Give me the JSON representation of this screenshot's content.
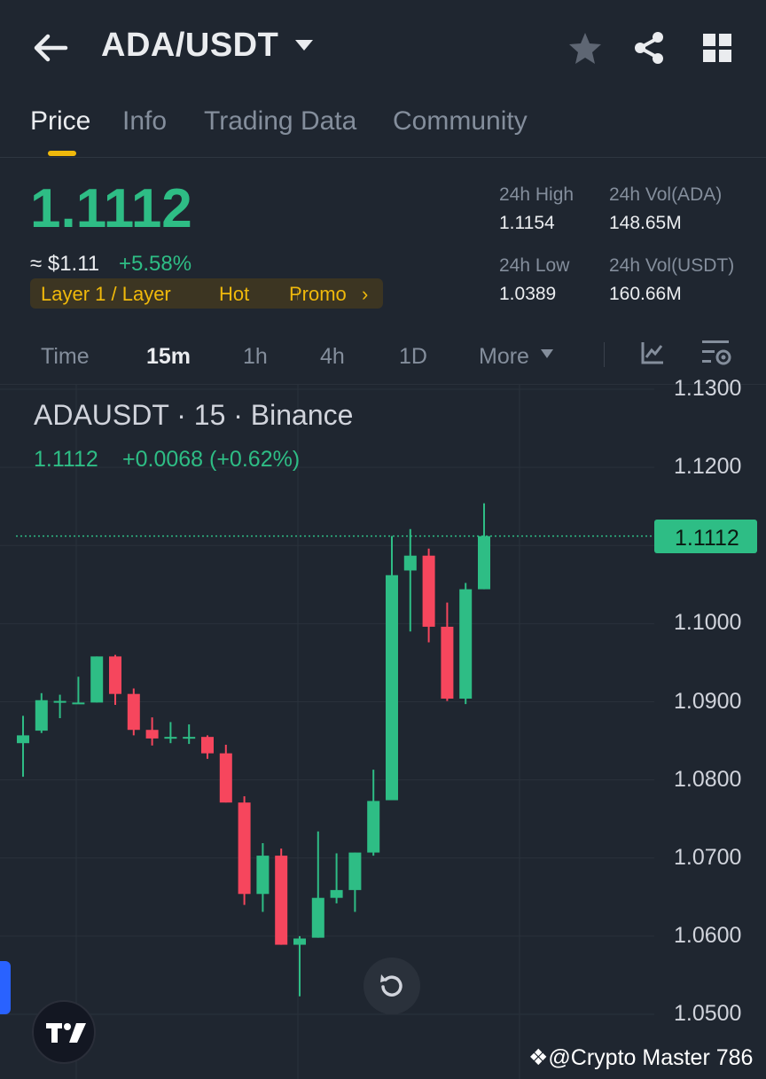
{
  "header": {
    "pair": "ADA/USDT",
    "icons": [
      "back-arrow-icon",
      "chevron-down-icon",
      "star-icon",
      "share-icon",
      "grid-icon"
    ]
  },
  "tabs": [
    {
      "label": "Price",
      "active": true
    },
    {
      "label": "Info",
      "active": false
    },
    {
      "label": "Trading Data",
      "active": false
    },
    {
      "label": "Community",
      "active": false
    }
  ],
  "summary": {
    "last_price": "1.1112",
    "usd_price": "≈ $1.11",
    "change_pct": "+5.58%",
    "tags": [
      "Layer 1 / Layer",
      "Hot",
      "Promo"
    ],
    "high_label": "24h High",
    "high_value": "1.1154",
    "low_label": "24h Low",
    "low_value": "1.0389",
    "vol_base_label": "24h Vol(ADA)",
    "vol_base_value": "148.65M",
    "vol_quote_label": "24h Vol(USDT)",
    "vol_quote_value": "160.66M"
  },
  "intervals": [
    {
      "label": "Time",
      "active": false
    },
    {
      "label": "15m",
      "active": true
    },
    {
      "label": "1h",
      "active": false
    },
    {
      "label": "4h",
      "active": false
    },
    {
      "label": "1D",
      "active": false
    },
    {
      "label": "More",
      "active": false
    }
  ],
  "chart": {
    "legend_title": "ADAUSDT · 15 · Binance",
    "legend_price": "1.1112",
    "legend_change": "+0.0068 (+0.62%)",
    "last_badge": "1.1112",
    "watermark": "@Crypto Master 786"
  },
  "colors": {
    "up": "#2ebd85",
    "down": "#f6465d",
    "accent": "#f0b90b",
    "bg": "#1f2630"
  },
  "chart_data": {
    "type": "candlestick",
    "y_ticks": [
      "1.1300",
      "1.1200",
      "1.1100",
      "1.1000",
      "1.0900",
      "1.0800",
      "1.0700",
      "1.0600",
      "1.0500"
    ],
    "ylim": [
      1.05,
      1.13
    ],
    "last": 1.1112,
    "candles": [
      {
        "o": 1.0847,
        "h": 1.0882,
        "c": 1.0857,
        "l": 1.0804
      },
      {
        "o": 1.0863,
        "h": 1.0911,
        "c": 1.0902,
        "l": 1.086
      },
      {
        "o": 1.0901,
        "h": 1.0909,
        "c": 1.0901,
        "l": 1.0879
      },
      {
        "o": 1.0899,
        "h": 1.0932,
        "c": 1.0899,
        "l": 1.0898
      },
      {
        "o": 1.0899,
        "h": 1.0958,
        "c": 1.0958,
        "l": 1.0899
      },
      {
        "o": 1.0958,
        "h": 1.096,
        "c": 1.091,
        "l": 1.0896
      },
      {
        "o": 1.091,
        "h": 1.0917,
        "c": 1.0864,
        "l": 1.0857
      },
      {
        "o": 1.0864,
        "h": 1.088,
        "c": 1.0853,
        "l": 1.0844
      },
      {
        "o": 1.0853,
        "h": 1.0874,
        "c": 1.0855,
        "l": 1.0847
      },
      {
        "o": 1.0855,
        "h": 1.0871,
        "c": 1.0855,
        "l": 1.0846
      },
      {
        "o": 1.0855,
        "h": 1.0857,
        "c": 1.0834,
        "l": 1.0827
      },
      {
        "o": 1.0834,
        "h": 1.0845,
        "c": 1.0771,
        "l": 1.0771
      },
      {
        "o": 1.0771,
        "h": 1.0779,
        "c": 1.0654,
        "l": 1.064
      },
      {
        "o": 1.0654,
        "h": 1.0719,
        "c": 1.0703,
        "l": 1.0631
      },
      {
        "o": 1.0703,
        "h": 1.0712,
        "c": 1.0589,
        "l": 1.0589
      },
      {
        "o": 1.0589,
        "h": 1.06,
        "c": 1.0597,
        "l": 1.0523
      },
      {
        "o": 1.0598,
        "h": 1.0734,
        "c": 1.0649,
        "l": 1.0598
      },
      {
        "o": 1.0649,
        "h": 1.0706,
        "c": 1.0659,
        "l": 1.0642
      },
      {
        "o": 1.0659,
        "h": 1.0707,
        "c": 1.0707,
        "l": 1.0631
      },
      {
        "o": 1.0707,
        "h": 1.0813,
        "c": 1.0773,
        "l": 1.0703
      },
      {
        "o": 1.0774,
        "h": 1.1112,
        "c": 1.1062,
        "l": 1.0774
      },
      {
        "o": 1.1068,
        "h": 1.1121,
        "c": 1.1087,
        "l": 1.099
      },
      {
        "o": 1.1087,
        "h": 1.1096,
        "c": 1.0996,
        "l": 1.0976
      },
      {
        "o": 1.0996,
        "h": 1.1027,
        "c": 1.0904,
        "l": 1.0901
      },
      {
        "o": 1.0904,
        "h": 1.1052,
        "c": 1.1044,
        "l": 1.0897
      },
      {
        "o": 1.1044,
        "h": 1.1154,
        "c": 1.1112,
        "l": 1.1044
      }
    ]
  }
}
